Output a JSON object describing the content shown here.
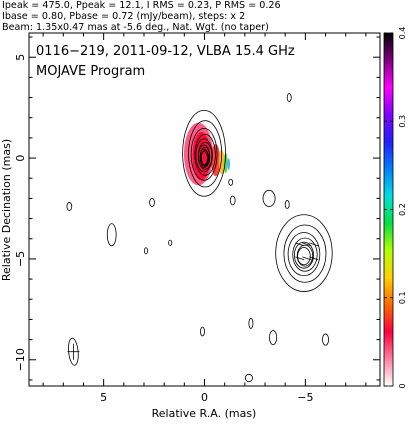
{
  "header": {
    "line1": "Ipeak = 475.0, Ppeak = 12.1, I RMS = 0.23, P RMS = 0.26",
    "line2": "Ibase = 0.80, Pbase = 0.72 (mJy/beam), steps: x 2",
    "line3": "Beam: 1.35x0.47 mas at -5.6 deg., Nat. Wgt. (no taper)"
  },
  "labels": {
    "source": "0116−219, 2011-09-12, VLBA 15.4 GHz",
    "program": "MOJAVE Program"
  },
  "chart_data": {
    "type": "contour",
    "xlabel": "Relative R.A. (mas)",
    "ylabel": "Relative Decination (mas)",
    "xlim": [
      8.7,
      -8.7
    ],
    "ylim": [
      -11.3,
      6.2
    ],
    "xticks": [
      5,
      0,
      -5
    ],
    "yticks": [
      5,
      0,
      -5,
      -10
    ],
    "grid": false,
    "colorbar": {
      "min": 0,
      "max": 0.4,
      "ticks": [
        0,
        0.1,
        0.2,
        0.3,
        0.4
      ],
      "placement": "right",
      "colors": [
        "#ffffff",
        "#ff7fa0",
        "#ff0040",
        "#ff6a00",
        "#ffd000",
        "#b0ff00",
        "#00e040",
        "#00e0e0",
        "#0080ff",
        "#2020ff",
        "#8000ff",
        "#ff00ff",
        "#800080",
        "#000000"
      ]
    },
    "beam": {
      "major": 1.35,
      "minor": 0.47,
      "pa_deg": -5.6,
      "center": [
        6.5,
        -9.6
      ]
    },
    "components": [
      {
        "name": "core",
        "center": [
          0.0,
          0.1
        ],
        "rx": 0.95,
        "ry": 1.9,
        "levels": 11,
        "extent_scale": 0.34
      },
      {
        "name": "jet",
        "center": [
          -4.95,
          -4.8
        ],
        "rx": 1.25,
        "ry": 1.7,
        "levels": 7,
        "extent_scale": 0.4
      }
    ],
    "isolated_contours": [
      {
        "x": 4.6,
        "y": -3.8,
        "rx": 0.22,
        "ry": 0.55
      },
      {
        "x": 6.7,
        "y": -2.4,
        "rx": 0.12,
        "ry": 0.2
      },
      {
        "x": -4.2,
        "y": 3.0,
        "rx": 0.1,
        "ry": 0.2
      },
      {
        "x": 2.6,
        "y": -2.2,
        "rx": 0.12,
        "ry": 0.2
      },
      {
        "x": 2.9,
        "y": -4.6,
        "rx": 0.08,
        "ry": 0.15
      },
      {
        "x": 1.7,
        "y": -4.2,
        "rx": 0.08,
        "ry": 0.13
      },
      {
        "x": -2.3,
        "y": -8.2,
        "rx": 0.1,
        "ry": 0.25
      },
      {
        "x": -3.4,
        "y": -8.9,
        "rx": 0.18,
        "ry": 0.35
      },
      {
        "x": 0.1,
        "y": -8.6,
        "rx": 0.1,
        "ry": 0.22
      },
      {
        "x": -6.0,
        "y": -9.0,
        "rx": 0.15,
        "ry": 0.28
      },
      {
        "x": -2.2,
        "y": -10.9,
        "rx": 0.18,
        "ry": 0.18
      },
      {
        "x": -1.4,
        "y": -2.1,
        "rx": 0.12,
        "ry": 0.22
      },
      {
        "x": -1.3,
        "y": -1.2,
        "rx": 0.1,
        "ry": 0.15
      },
      {
        "x": -3.2,
        "y": -2.0,
        "rx": 0.3,
        "ry": 0.4
      },
      {
        "x": -4.1,
        "y": -2.3,
        "rx": 0.1,
        "ry": 0.2
      }
    ],
    "pol_patches": [
      {
        "center": [
          0.3,
          0.2
        ],
        "rx": 0.72,
        "ry": 1.55,
        "color": "#ff4070"
      },
      {
        "center": [
          0.15,
          0.1
        ],
        "rx": 0.45,
        "ry": 1.2,
        "color": "#ff0030"
      },
      {
        "center": [
          -0.55,
          -0.1
        ],
        "rx": 0.22,
        "ry": 0.8,
        "color": "#ff2020"
      },
      {
        "center": [
          -0.85,
          -0.2
        ],
        "rx": 0.14,
        "ry": 0.6,
        "color": "#ffb000"
      },
      {
        "center": [
          -1.05,
          -0.25
        ],
        "rx": 0.1,
        "ry": 0.5,
        "color": "#40d040"
      },
      {
        "center": [
          -1.2,
          -0.3
        ],
        "rx": 0.06,
        "ry": 0.3,
        "color": "#20a0ff"
      }
    ]
  }
}
